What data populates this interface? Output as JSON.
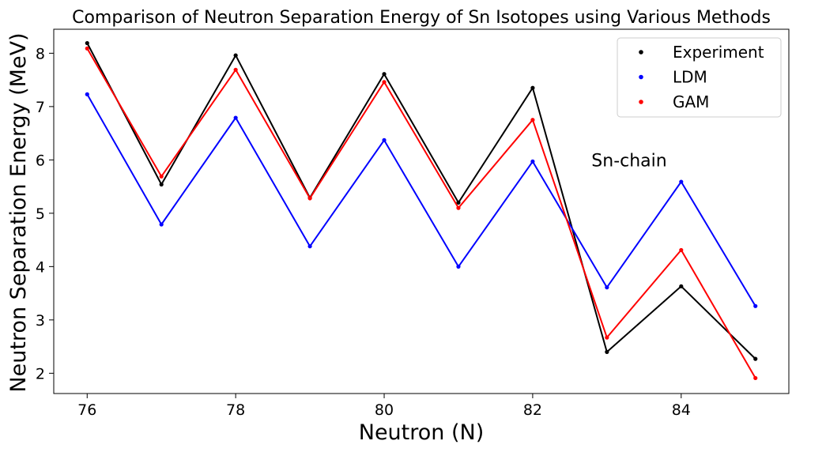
{
  "chart_data": {
    "type": "line",
    "title": "Comparison of Neutron Separation Energy of Sn Isotopes using Various Methods",
    "xlabel": "Neutron (N)",
    "ylabel": "Neutron Separation Energy (MeV)",
    "x": [
      76,
      77,
      78,
      79,
      80,
      81,
      82,
      83,
      84,
      85
    ],
    "xlim": [
      75.55,
      85.45
    ],
    "ylim": [
      1.62,
      8.45
    ],
    "xticks": [
      76,
      78,
      80,
      82,
      84
    ],
    "yticks": [
      2,
      3,
      4,
      5,
      6,
      7,
      8
    ],
    "grid": false,
    "legend_position": "top-right",
    "series": [
      {
        "name": "Experiment",
        "color": "#000000",
        "values": [
          8.19,
          5.54,
          7.96,
          5.29,
          7.61,
          5.2,
          7.35,
          2.4,
          3.63,
          2.27
        ]
      },
      {
        "name": "LDM",
        "color": "#0000ff",
        "values": [
          7.23,
          4.79,
          6.79,
          4.38,
          6.37,
          4.0,
          5.97,
          3.61,
          5.59,
          3.26
        ]
      },
      {
        "name": "GAM",
        "color": "#ff0000",
        "values": [
          8.09,
          5.69,
          7.69,
          5.28,
          7.46,
          5.1,
          6.75,
          2.67,
          4.31,
          1.91
        ]
      }
    ],
    "annotations": [
      {
        "text": "Sn-chain",
        "x": 83.3,
        "y": 6.0
      }
    ]
  }
}
